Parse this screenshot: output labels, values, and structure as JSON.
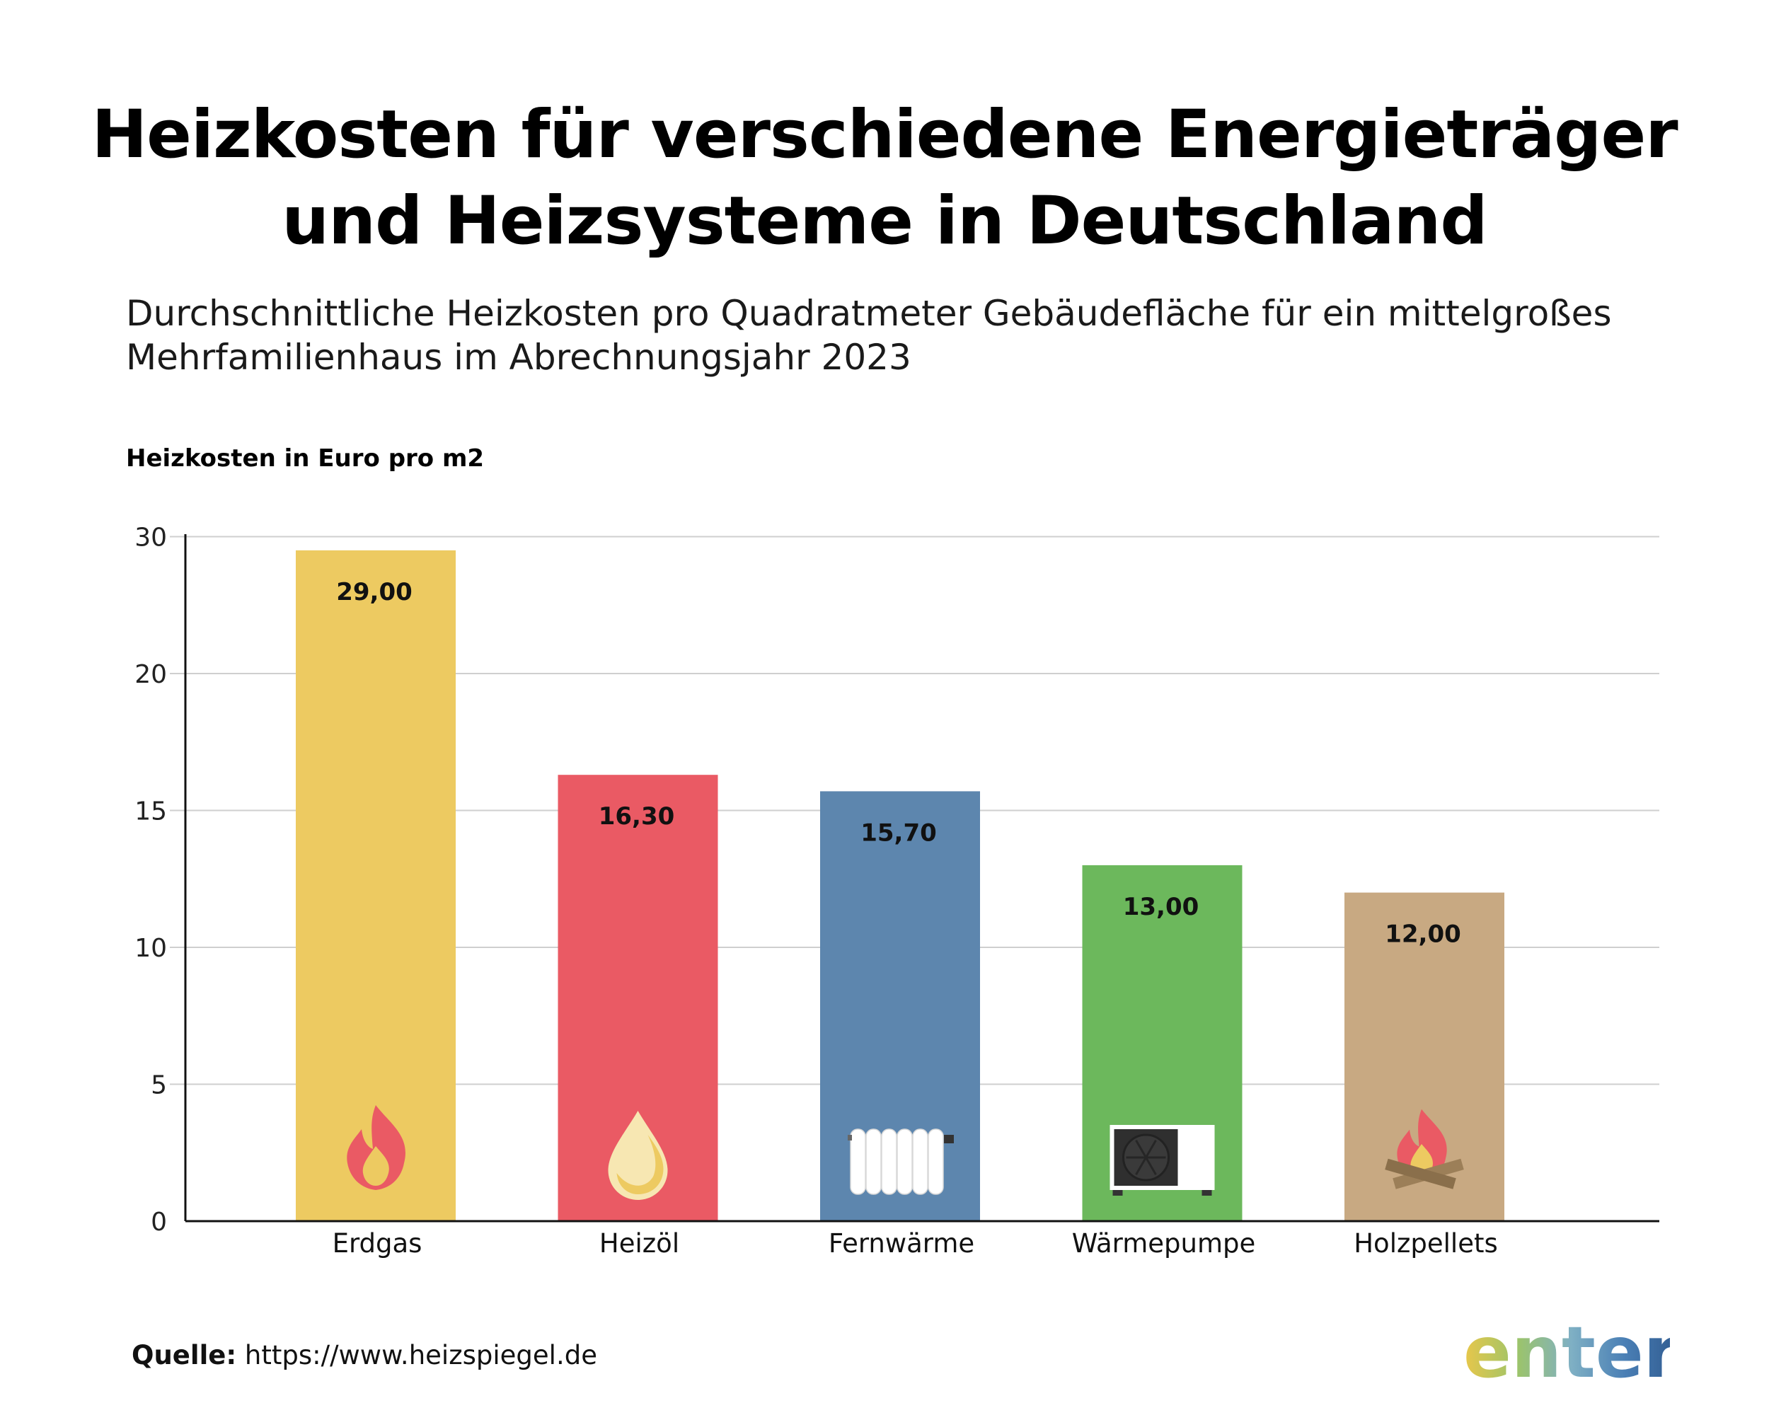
{
  "title_lines": [
    "Heizkosten für verschiedene Energieträger",
    "und Heizsysteme in Deutschland"
  ],
  "subtitle_lines": [
    "Durchschnittliche Heizkosten pro Quadratmeter Gebäudefläche für ein mittelgroßes",
    "Mehrfamilienhaus im Abrechnungsjahr 2023"
  ],
  "source": {
    "label": "Quelle:",
    "url": "https://www.heizspiegel.de"
  },
  "logo": {
    "text": "enter",
    "colors": [
      "#e9c74a",
      "#9cc46a",
      "#7fb0c4",
      "#4a7fb5",
      "#2f5a8f"
    ]
  },
  "chart_data": {
    "type": "bar",
    "ylabel": "Heizkosten in Euro pro m2",
    "xlabel": "",
    "categories": [
      "Erdgas",
      "Heizöl",
      "Fernwärme",
      "Wärmepumpe",
      "Holzpellets"
    ],
    "values": [
      29.0,
      16.3,
      15.7,
      13.0,
      12.0
    ],
    "value_labels": [
      "29,00",
      "16,30",
      "15,70",
      "13,00",
      "12,00"
    ],
    "colors": [
      "#edca61",
      "#ea5a64",
      "#5d86ae",
      "#6cb85c",
      "#c8a982"
    ],
    "icons": [
      "flame-icon",
      "oil-drop-icon",
      "radiator-icon",
      "heat-pump-icon",
      "campfire-icon"
    ],
    "yticks": [
      0,
      5,
      10,
      15,
      20,
      30
    ],
    "ylim": [
      0,
      30
    ],
    "grid": true,
    "legend": "none"
  }
}
